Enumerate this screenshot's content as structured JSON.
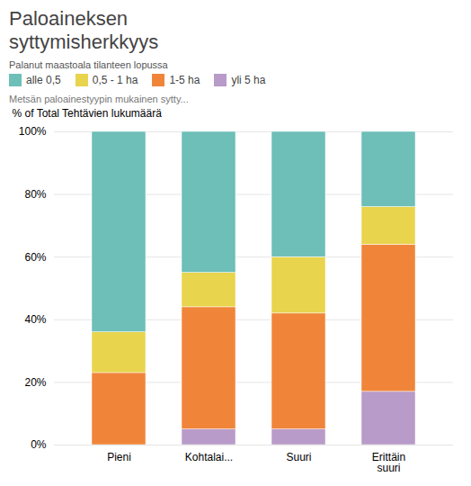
{
  "chart_data": {
    "type": "bar",
    "stacked": true,
    "title": "Paloaineksen\nsyttymisherkkyys",
    "subtitle": "Metsän paloainestyypin mukainen sytty...",
    "legend_title": "Palanut maastoala tilanteen lopussa",
    "legend": "right",
    "ylabel": "% of Total Tehtävien lukumäärä",
    "categories": [
      "Pieni",
      "Kohtalai...",
      "Suuri",
      "Erittäin\nsuuri"
    ],
    "series": [
      {
        "name": "yli 5 ha",
        "color": "#b89bc8",
        "values": [
          0.0,
          0.05,
          0.05,
          0.17
        ]
      },
      {
        "name": "1-5 ha",
        "color": "#f0853a",
        "values": [
          0.23,
          0.39,
          0.37,
          0.47
        ]
      },
      {
        "name": "0,5 - 1 ha",
        "color": "#e8d44d",
        "values": [
          0.13,
          0.11,
          0.18,
          0.12
        ]
      },
      {
        "name": "alle 0,5",
        "color": "#6dbfb8",
        "values": [
          0.64,
          0.45,
          0.4,
          0.24
        ]
      }
    ],
    "ylim": [
      0,
      1.0
    ],
    "yticks": [
      {
        "value": 0.0,
        "label": "0%"
      },
      {
        "value": 0.2,
        "label": "20%"
      },
      {
        "value": 0.4,
        "label": "40%"
      },
      {
        "value": 0.6,
        "label": "60%"
      },
      {
        "value": 0.8,
        "label": "80%"
      },
      {
        "value": 1.0,
        "label": "100%"
      }
    ],
    "grid": true
  }
}
